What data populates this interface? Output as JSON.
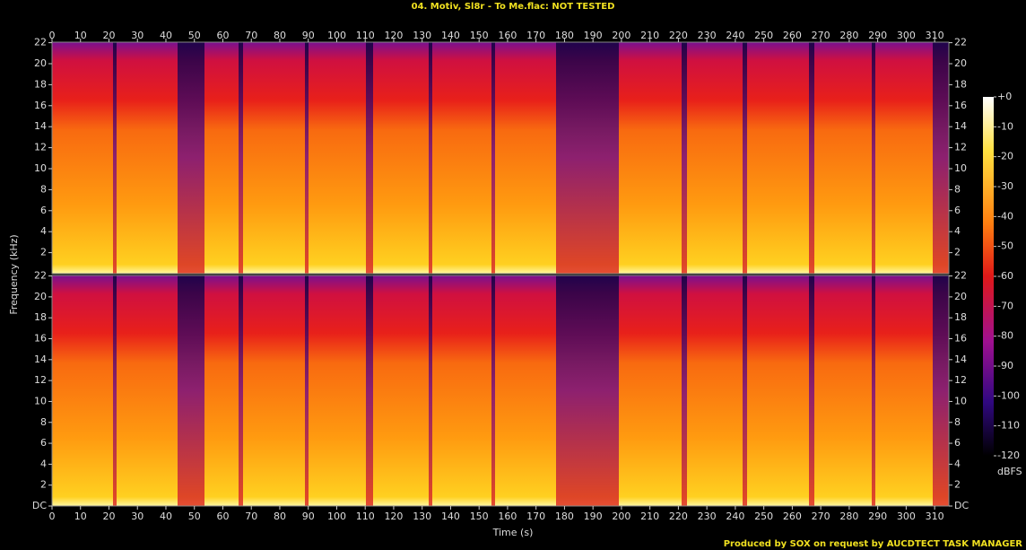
{
  "chart_data": {
    "type": "spectrogram",
    "title": "04. Motiv, Sl8r - To Me.flac: NOT TESTED",
    "xlabel": "Time (s)",
    "ylabel": "Frequency (kHz)",
    "xlim": [
      0,
      315
    ],
    "xticks": [
      0,
      10,
      20,
      30,
      40,
      50,
      60,
      70,
      80,
      90,
      100,
      110,
      120,
      130,
      140,
      150,
      160,
      170,
      180,
      190,
      200,
      210,
      220,
      230,
      240,
      250,
      260,
      270,
      280,
      290,
      300,
      310
    ],
    "ylim": [
      0,
      22.05
    ],
    "panels": [
      {
        "yticks": [
          2,
          4,
          6,
          8,
          10,
          12,
          14,
          16,
          18,
          20,
          22
        ]
      },
      {
        "yticks": [
          {
            "value": 0,
            "label": "DC"
          },
          2,
          4,
          6,
          8,
          10,
          12,
          14,
          16,
          18,
          20,
          22
        ]
      }
    ],
    "colorbar": {
      "label": "dBFS",
      "clim": [
        -120,
        0
      ],
      "ticks": [
        {
          "value": 0,
          "label": "+0"
        },
        -10,
        -20,
        -30,
        -40,
        -50,
        -60,
        -70,
        -80,
        -90,
        -100,
        -110,
        -120
      ]
    },
    "footer": "Produced by SOX on request by AUCDTECT TASK MANAGER"
  }
}
